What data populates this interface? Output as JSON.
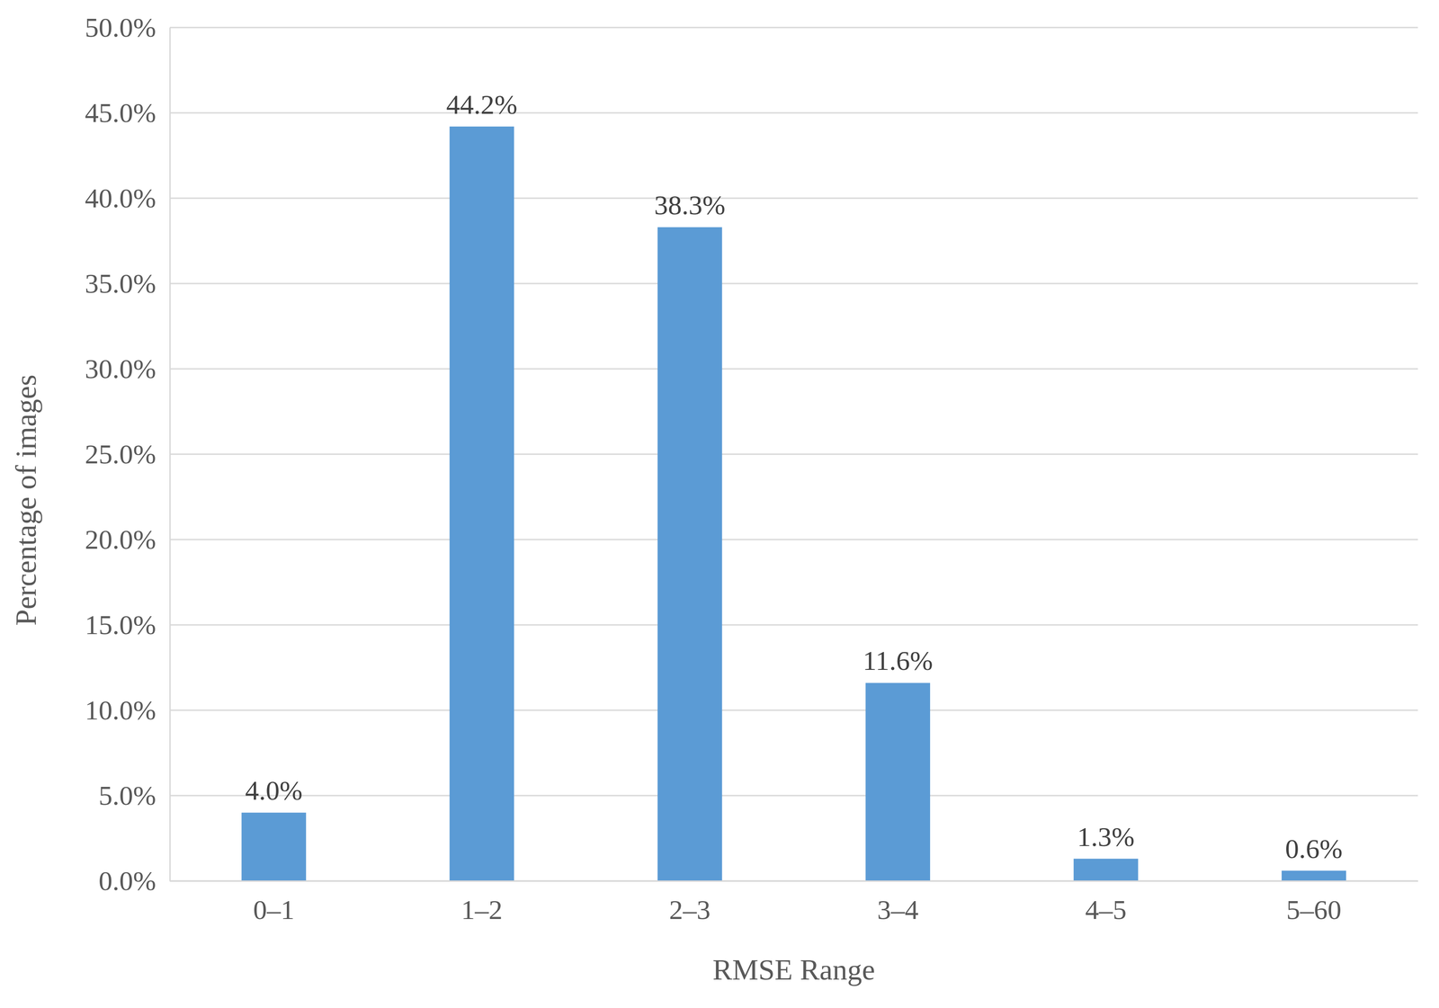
{
  "chart_data": {
    "type": "bar",
    "x_label": "RMSE Range",
    "y_label": "Percentage of images",
    "categories": [
      "0–1",
      "1–2",
      "2–3",
      "3–4",
      "4–5",
      "5–60"
    ],
    "values": [
      4.0,
      44.2,
      38.3,
      11.6,
      1.3,
      0.6
    ],
    "value_labels": [
      "4.0%",
      "44.2%",
      "38.3%",
      "11.6%",
      "1.3%",
      "0.6%"
    ],
    "color": "#5b9bd5",
    "ylim": [
      0,
      50
    ],
    "yticks": [
      {
        "value": 0,
        "label": "0.0%"
      },
      {
        "value": 5,
        "label": "5.0%"
      },
      {
        "value": 10,
        "label": "10.0%"
      },
      {
        "value": 15,
        "label": "15.0%"
      },
      {
        "value": 20,
        "label": "20.0%"
      },
      {
        "value": 25,
        "label": "25.0%"
      },
      {
        "value": 30,
        "label": "30.0%"
      },
      {
        "value": 35,
        "label": "35.0%"
      },
      {
        "value": 40,
        "label": "40.0%"
      },
      {
        "value": 45,
        "label": "45.0%"
      },
      {
        "value": 50,
        "label": "50.0%"
      }
    ],
    "grid": true,
    "data_labels": true
  }
}
